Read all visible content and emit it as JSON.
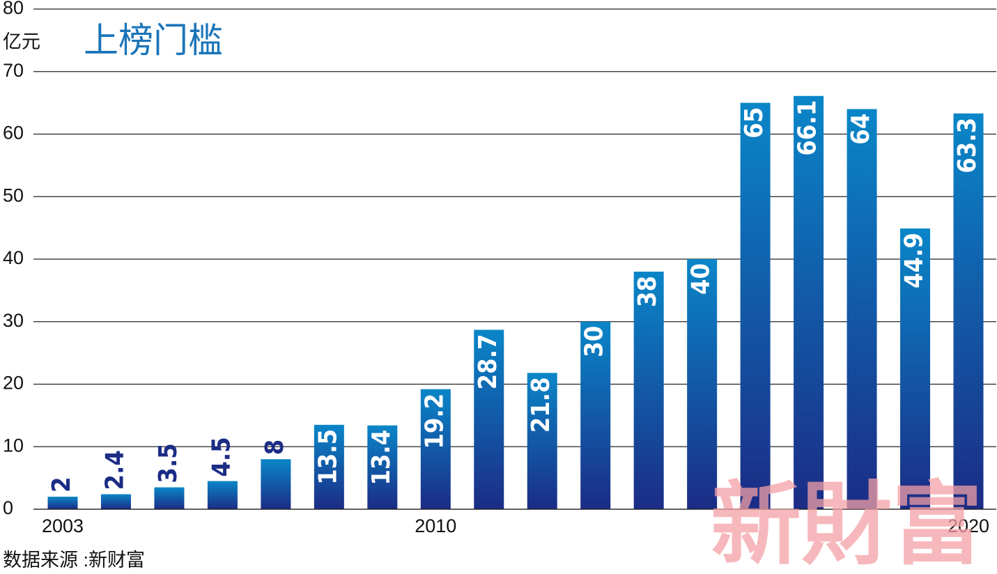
{
  "chart_data": {
    "type": "bar",
    "title": "上榜门槛",
    "y_unit": "亿元",
    "source": "数据来源 :新财富",
    "watermark": "新財富",
    "categories": [
      "2003",
      null,
      null,
      null,
      null,
      null,
      null,
      "2010",
      null,
      null,
      null,
      null,
      null,
      null,
      null,
      null,
      null,
      "2020"
    ],
    "values": [
      2,
      2.4,
      3.5,
      4.5,
      8,
      13.5,
      13.4,
      19.2,
      28.7,
      21.8,
      30,
      38,
      40,
      65,
      66.1,
      64,
      44.9,
      63.3
    ],
    "color_top": "#0a86c8",
    "color_bottom": "#1b2c85",
    "ylim": [
      0,
      80
    ],
    "yticks": [
      0,
      10,
      20,
      30,
      40,
      50,
      60,
      70,
      80
    ],
    "grid": true
  }
}
